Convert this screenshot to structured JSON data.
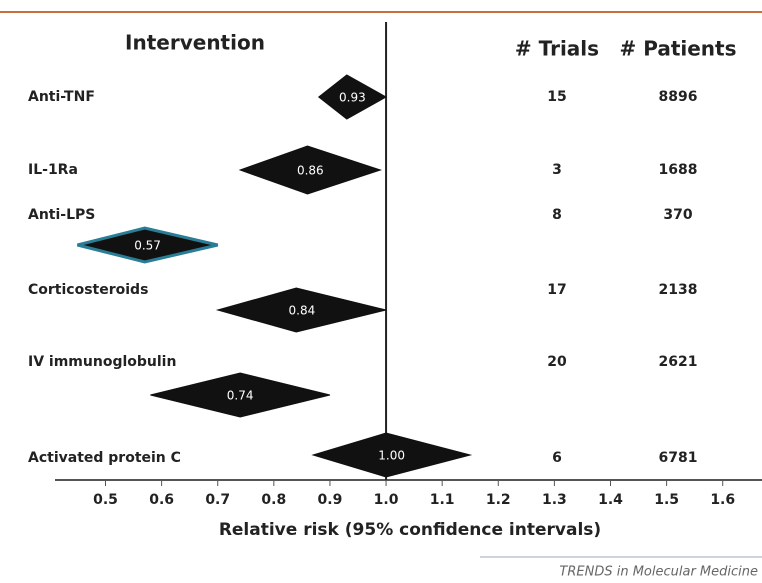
{
  "chart_data": {
    "type": "forest",
    "column_headers": [
      "Intervention",
      "# Trials",
      "# Patients"
    ],
    "categories": [
      "Anti-TNF",
      "IL-1Ra",
      "Anti-LPS",
      "Corticosteroids",
      "IV immunoglobulin",
      "Activated protein C"
    ],
    "values": [
      0.93,
      0.86,
      0.57,
      0.84,
      0.74,
      1.0
    ],
    "value_labels": [
      "0.93",
      "0.86",
      "0.57",
      "0.84",
      "0.74",
      "1.00"
    ],
    "ci_low": [
      0.88,
      0.74,
      0.45,
      0.7,
      0.58,
      0.87
    ],
    "ci_high": [
      1.0,
      0.99,
      0.7,
      1.0,
      0.9,
      1.15
    ],
    "trials": [
      15,
      3,
      8,
      17,
      20,
      6
    ],
    "patients": [
      8896,
      1688,
      370,
      2138,
      2621,
      6781
    ],
    "color": "#111111",
    "xlim": [
      0.41,
      1.67
    ],
    "xticks": [
      0.5,
      0.6,
      0.7,
      0.8,
      0.9,
      {
        "value": 1,
        "label": "1.0"
      },
      1.1,
      1.2,
      1.3,
      1.4,
      1.5,
      1.6
    ],
    "reference_line": 1,
    "xlabel": "Relative risk (95% confidence intervals)",
    "source": "TRENDS in Molecular Medicine"
  }
}
